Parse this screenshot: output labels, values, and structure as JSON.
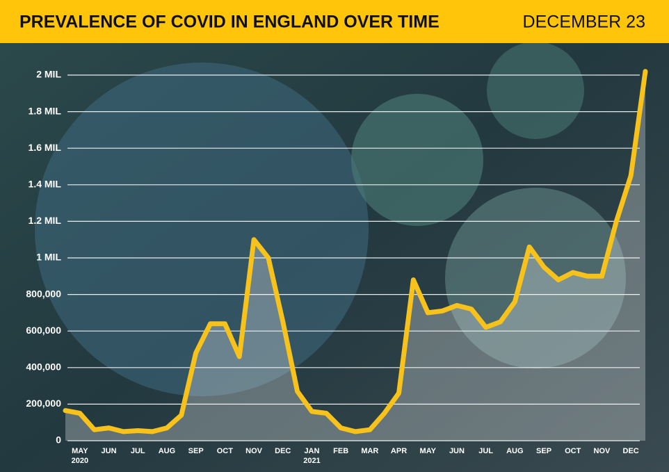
{
  "chart_data": {
    "type": "line",
    "title": "PREVALENCE OF COVID IN ENGLAND OVER TIME",
    "subtitle": "DECEMBER 23",
    "categories": [
      null,
      "MAY",
      null,
      "JUN",
      null,
      "JUL",
      null,
      "AUG",
      null,
      "SEP",
      null,
      "OCT",
      null,
      "NOV",
      null,
      "DEC",
      null,
      "JAN",
      null,
      "FEB",
      null,
      "MAR",
      null,
      "APR",
      null,
      "MAY",
      null,
      "JUN",
      null,
      "JUL",
      null,
      "AUG",
      null,
      "SEP",
      null,
      "OCT",
      null,
      "NOV",
      null,
      "DEC",
      null
    ],
    "category_years": [
      null,
      "2020",
      null,
      null,
      null,
      null,
      null,
      null,
      null,
      null,
      null,
      null,
      null,
      null,
      null,
      null,
      null,
      "2021",
      null,
      null,
      null,
      null,
      null,
      null,
      null,
      null,
      null,
      null,
      null,
      null,
      null,
      null,
      null,
      null,
      null,
      null,
      null,
      null,
      null,
      null,
      null
    ],
    "values": [
      165000,
      150000,
      60000,
      70000,
      50000,
      55000,
      50000,
      70000,
      140000,
      480000,
      640000,
      640000,
      460000,
      1100000,
      1000000,
      650000,
      270000,
      160000,
      150000,
      70000,
      50000,
      60000,
      150000,
      260000,
      880000,
      700000,
      710000,
      740000,
      720000,
      620000,
      650000,
      760000,
      1060000,
      950000,
      880000,
      920000,
      900000,
      900000,
      1200000,
      1450000,
      2020000
    ],
    "color": "#f7c21b",
    "ylim": [
      0,
      2000000
    ],
    "yticks": [
      0,
      {
        "value": 200000,
        "label": "200,000"
      },
      {
        "value": 400000,
        "label": "400,000"
      },
      {
        "value": 600000,
        "label": "600,000"
      },
      {
        "value": 800000,
        "label": "800,000"
      },
      {
        "value": 1000000,
        "label": "1 MIL"
      },
      {
        "value": 1200000,
        "label": "1.2 MIL"
      },
      {
        "value": 1400000,
        "label": "1.4 MIL"
      },
      {
        "value": 1600000,
        "label": "1.6 MIL"
      },
      {
        "value": 1800000,
        "label": "1.8 MIL"
      },
      {
        "value": 2000000,
        "label": "2 MIL"
      }
    ],
    "grid": true
  }
}
